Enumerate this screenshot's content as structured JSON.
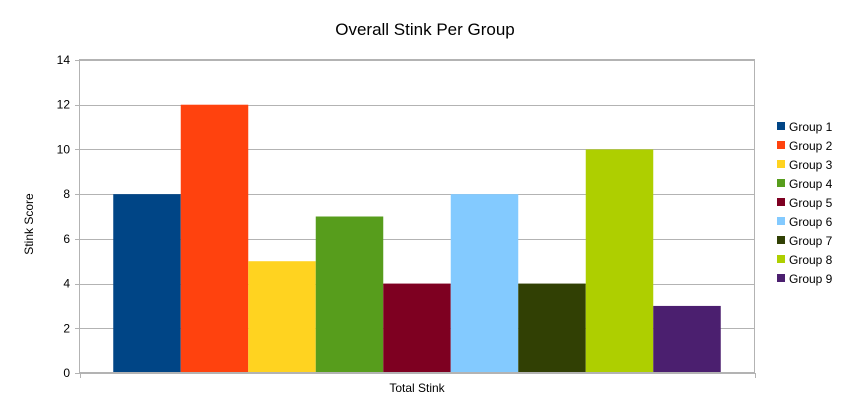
{
  "chart_data": {
    "type": "bar",
    "title": "Overall Stink Per Group",
    "xlabel": "Total Stink",
    "ylabel": "Stink Score",
    "categories": [
      "Total Stink"
    ],
    "ylim": [
      0,
      14
    ],
    "yticks": [
      0,
      2,
      4,
      6,
      8,
      10,
      12,
      14
    ],
    "grid": true,
    "legend_position": "right",
    "series": [
      {
        "name": "Group 1",
        "values": [
          8
        ],
        "color": "#004586"
      },
      {
        "name": "Group 2",
        "values": [
          12
        ],
        "color": "#ff420e"
      },
      {
        "name": "Group 3",
        "values": [
          5
        ],
        "color": "#ffd320"
      },
      {
        "name": "Group 4",
        "values": [
          7
        ],
        "color": "#579d1c"
      },
      {
        "name": "Group 5",
        "values": [
          4
        ],
        "color": "#7e0021"
      },
      {
        "name": "Group 6",
        "values": [
          8
        ],
        "color": "#83caff"
      },
      {
        "name": "Group 7",
        "values": [
          4
        ],
        "color": "#314004"
      },
      {
        "name": "Group 8",
        "values": [
          10
        ],
        "color": "#aecf00"
      },
      {
        "name": "Group 9",
        "values": [
          3
        ],
        "color": "#4b1f6f"
      }
    ]
  }
}
